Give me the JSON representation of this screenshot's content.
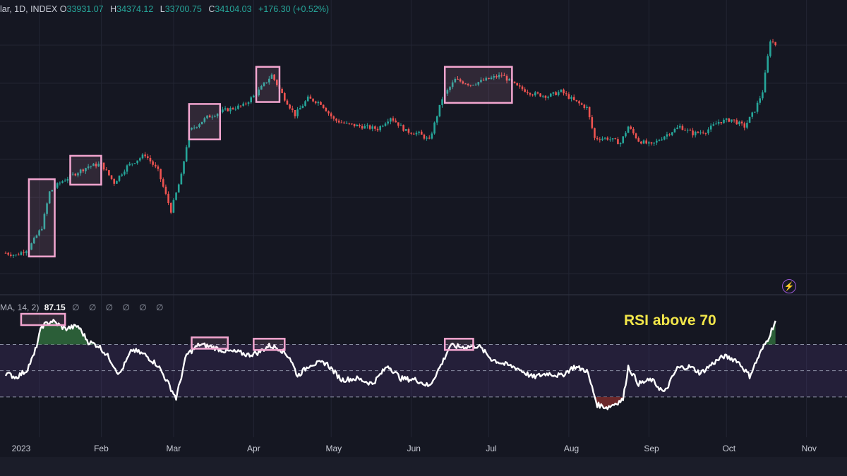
{
  "header": {
    "title": "lar, 1D, INDEX",
    "open_label": "O",
    "open": "33931.07",
    "high_label": "H",
    "high": "34374.12",
    "low_label": "L",
    "low": "33700.75",
    "close_label": "C",
    "close": "34104.03",
    "change": "+176.30 (+0.52%)"
  },
  "rsi_header": {
    "label": "MA, 14, 2)",
    "value": "87.15",
    "icons": "∅ ∅ ∅ ∅ ∅ ∅"
  },
  "annotation": "RSI above 70",
  "colors": {
    "background": "#151722",
    "up": "#26a69a",
    "down": "#ef5350",
    "highlight_box": "#f3a6d0",
    "rsi_line": "#ffffff",
    "rsi_band": "#5b3f8c",
    "overbought_fill": "#2f6b3c",
    "oversold_fill": "#7a2b2b",
    "annotation": "#f2e64a"
  },
  "icons": {
    "bolt": "lightning-icon"
  },
  "chart_data": {
    "type": "candlestick-with-rsi",
    "x_tick_labels": [
      "2023",
      "Feb",
      "Mar",
      "Apr",
      "May",
      "Jun",
      "Jul",
      "Aug",
      "Sep",
      "Oct",
      "Nov"
    ],
    "price_series": {
      "name": "INDEX",
      "close_path": [
        [
          "2023-01-01",
          0.04
        ],
        [
          "2023-01-05",
          0.03
        ],
        [
          "2023-01-10",
          0.06
        ],
        [
          "2023-01-15",
          0.15
        ],
        [
          "2023-01-18",
          0.3
        ],
        [
          "2023-01-22",
          0.34
        ],
        [
          "2023-01-28",
          0.38
        ],
        [
          "2023-02-02",
          0.41
        ],
        [
          "2023-02-07",
          0.42
        ],
        [
          "2023-02-12",
          0.34
        ],
        [
          "2023-02-17",
          0.41
        ],
        [
          "2023-02-24",
          0.46
        ],
        [
          "2023-03-01",
          0.39
        ],
        [
          "2023-03-06",
          0.22
        ],
        [
          "2023-03-10",
          0.37
        ],
        [
          "2023-03-13",
          0.56
        ],
        [
          "2023-03-20",
          0.62
        ],
        [
          "2023-03-27",
          0.65
        ],
        [
          "2023-04-03",
          0.67
        ],
        [
          "2023-04-08",
          0.72
        ],
        [
          "2023-04-14",
          0.8
        ],
        [
          "2023-04-19",
          0.7
        ],
        [
          "2023-04-23",
          0.63
        ],
        [
          "2023-04-28",
          0.7
        ],
        [
          "2023-05-03",
          0.68
        ],
        [
          "2023-05-08",
          0.61
        ],
        [
          "2023-05-13",
          0.59
        ],
        [
          "2023-05-19",
          0.58
        ],
        [
          "2023-05-25",
          0.57
        ],
        [
          "2023-05-30",
          0.62
        ],
        [
          "2023-06-05",
          0.56
        ],
        [
          "2023-06-10",
          0.55
        ],
        [
          "2023-06-14",
          0.52
        ],
        [
          "2023-06-19",
          0.7
        ],
        [
          "2023-06-24",
          0.78
        ],
        [
          "2023-06-30",
          0.76
        ],
        [
          "2023-07-06",
          0.78
        ],
        [
          "2023-07-12",
          0.8
        ],
        [
          "2023-07-18",
          0.75
        ],
        [
          "2023-07-24",
          0.72
        ],
        [
          "2023-07-30",
          0.71
        ],
        [
          "2023-08-04",
          0.73
        ],
        [
          "2023-08-09",
          0.69
        ],
        [
          "2023-08-14",
          0.66
        ],
        [
          "2023-08-17",
          0.53
        ],
        [
          "2023-08-22",
          0.53
        ],
        [
          "2023-08-27",
          0.51
        ],
        [
          "2023-08-30",
          0.58
        ],
        [
          "2023-09-03",
          0.52
        ],
        [
          "2023-09-08",
          0.5
        ],
        [
          "2023-09-13",
          0.54
        ],
        [
          "2023-09-19",
          0.58
        ],
        [
          "2023-09-24",
          0.55
        ],
        [
          "2023-09-29",
          0.56
        ],
        [
          "2023-10-04",
          0.6
        ],
        [
          "2023-10-09",
          0.61
        ],
        [
          "2023-10-14",
          0.58
        ],
        [
          "2023-10-18",
          0.65
        ],
        [
          "2023-10-21",
          0.73
        ],
        [
          "2023-10-24",
          0.95
        ],
        [
          "2023-10-26",
          0.93
        ]
      ],
      "last_close": 34104.03
    },
    "rsi_series": {
      "name": "RSI",
      "levels": [
        70,
        50,
        30
      ],
      "values": [
        [
          "2023-01-01",
          48
        ],
        [
          "2023-01-05",
          45
        ],
        [
          "2023-01-09",
          50
        ],
        [
          "2023-01-12",
          62
        ],
        [
          "2023-01-15",
          84
        ],
        [
          "2023-01-19",
          88
        ],
        [
          "2023-01-24",
          82
        ],
        [
          "2023-01-29",
          84
        ],
        [
          "2023-02-02",
          72
        ],
        [
          "2023-02-06",
          69
        ],
        [
          "2023-02-10",
          60
        ],
        [
          "2023-02-14",
          47
        ],
        [
          "2023-02-19",
          66
        ],
        [
          "2023-02-24",
          62
        ],
        [
          "2023-03-01",
          54
        ],
        [
          "2023-03-05",
          40
        ],
        [
          "2023-03-08",
          29
        ],
        [
          "2023-03-12",
          62
        ],
        [
          "2023-03-17",
          70
        ],
        [
          "2023-03-22",
          68
        ],
        [
          "2023-03-27",
          65
        ],
        [
          "2023-04-01",
          64
        ],
        [
          "2023-04-05",
          62
        ],
        [
          "2023-04-09",
          64
        ],
        [
          "2023-04-13",
          69
        ],
        [
          "2023-04-17",
          67
        ],
        [
          "2023-04-21",
          60
        ],
        [
          "2023-04-24",
          46
        ],
        [
          "2023-04-29",
          55
        ],
        [
          "2023-05-05",
          56
        ],
        [
          "2023-05-11",
          43
        ],
        [
          "2023-05-17",
          44
        ],
        [
          "2023-05-23",
          40
        ],
        [
          "2023-05-29",
          54
        ],
        [
          "2023-06-03",
          44
        ],
        [
          "2023-06-09",
          43
        ],
        [
          "2023-06-14",
          38
        ],
        [
          "2023-06-19",
          56
        ],
        [
          "2023-06-22",
          69
        ],
        [
          "2023-06-27",
          68
        ],
        [
          "2023-07-03",
          69
        ],
        [
          "2023-07-08",
          59
        ],
        [
          "2023-07-13",
          55
        ],
        [
          "2023-07-18",
          52
        ],
        [
          "2023-07-24",
          45
        ],
        [
          "2023-07-30",
          48
        ],
        [
          "2023-08-04",
          46
        ],
        [
          "2023-08-09",
          53
        ],
        [
          "2023-08-14",
          50
        ],
        [
          "2023-08-18",
          24
        ],
        [
          "2023-08-22",
          22
        ],
        [
          "2023-08-25",
          25
        ],
        [
          "2023-08-28",
          28
        ],
        [
          "2023-08-30",
          53
        ],
        [
          "2023-09-03",
          40
        ],
        [
          "2023-09-08",
          43
        ],
        [
          "2023-09-13",
          33
        ],
        [
          "2023-09-18",
          52
        ],
        [
          "2023-09-23",
          53
        ],
        [
          "2023-09-27",
          48
        ],
        [
          "2023-10-02",
          56
        ],
        [
          "2023-10-06",
          61
        ],
        [
          "2023-10-11",
          58
        ],
        [
          "2023-10-16",
          46
        ],
        [
          "2023-10-20",
          63
        ],
        [
          "2023-10-23",
          74
        ],
        [
          "2023-10-26",
          88
        ]
      ]
    },
    "highlight_periods_price": [
      [
        "2023-01-10",
        "2023-01-20"
      ],
      [
        "2023-01-26",
        "2023-02-07"
      ],
      [
        "2023-03-13",
        "2023-03-25"
      ],
      [
        "2023-04-08",
        "2023-04-17"
      ],
      [
        "2023-06-20",
        "2023-07-16"
      ]
    ],
    "highlight_periods_rsi": [
      [
        "2023-01-07",
        "2023-01-24"
      ],
      [
        "2023-03-14",
        "2023-03-28"
      ],
      [
        "2023-04-07",
        "2023-04-19"
      ],
      [
        "2023-06-20",
        "2023-07-01"
      ]
    ],
    "grid": true
  }
}
